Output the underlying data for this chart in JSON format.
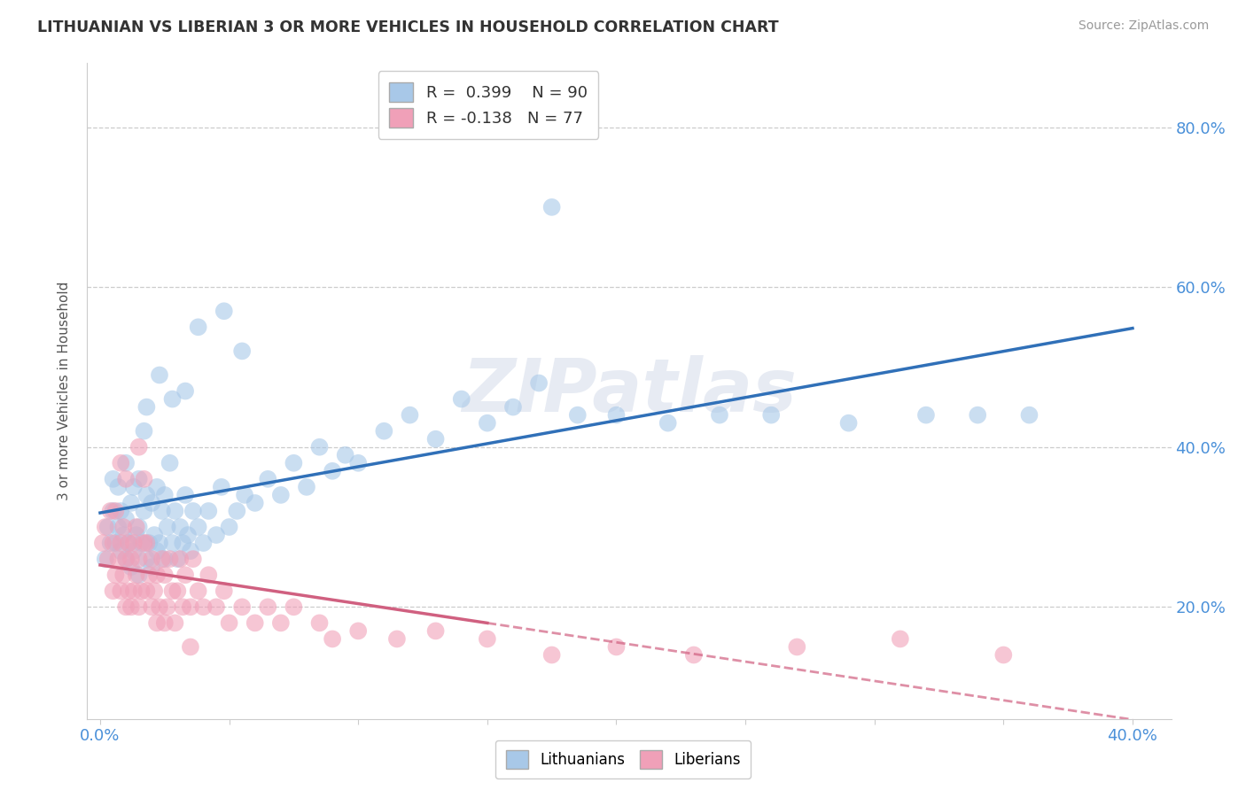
{
  "title": "LITHUANIAN VS LIBERIAN 3 OR MORE VEHICLES IN HOUSEHOLD CORRELATION CHART",
  "source": "Source: ZipAtlas.com",
  "ylabel": "3 or more Vehicles in Household",
  "xlim": [
    -0.005,
    0.415
  ],
  "ylim": [
    0.06,
    0.88
  ],
  "xtick_positions": [
    0.0,
    0.05,
    0.1,
    0.15,
    0.2,
    0.25,
    0.3,
    0.35,
    0.4
  ],
  "xticklabels": [
    "0.0%",
    "",
    "",
    "",
    "",
    "",
    "",
    "",
    "40.0%"
  ],
  "ytick_positions": [
    0.2,
    0.4,
    0.6,
    0.8
  ],
  "yticklabels": [
    "20.0%",
    "40.0%",
    "60.0%",
    "80.0%"
  ],
  "grid_lines": [
    0.2,
    0.4,
    0.6,
    0.8
  ],
  "blue_R": 0.399,
  "blue_N": 90,
  "pink_R": -0.138,
  "pink_N": 77,
  "blue_color": "#a8c8e8",
  "pink_color": "#f0a0b8",
  "blue_line_color": "#3070b8",
  "pink_line_color": "#d06080",
  "watermark": "ZIPatlas",
  "blue_scatter_x": [
    0.002,
    0.003,
    0.004,
    0.005,
    0.005,
    0.006,
    0.007,
    0.007,
    0.008,
    0.008,
    0.009,
    0.01,
    0.01,
    0.01,
    0.011,
    0.012,
    0.012,
    0.013,
    0.013,
    0.014,
    0.015,
    0.015,
    0.015,
    0.016,
    0.017,
    0.017,
    0.018,
    0.018,
    0.019,
    0.02,
    0.02,
    0.021,
    0.022,
    0.022,
    0.023,
    0.024,
    0.025,
    0.025,
    0.026,
    0.027,
    0.028,
    0.029,
    0.03,
    0.031,
    0.032,
    0.033,
    0.034,
    0.035,
    0.036,
    0.038,
    0.04,
    0.042,
    0.045,
    0.047,
    0.05,
    0.053,
    0.056,
    0.06,
    0.065,
    0.07,
    0.075,
    0.08,
    0.085,
    0.09,
    0.095,
    0.1,
    0.11,
    0.12,
    0.13,
    0.14,
    0.15,
    0.16,
    0.17,
    0.185,
    0.2,
    0.22,
    0.24,
    0.26,
    0.29,
    0.32,
    0.34,
    0.36,
    0.175,
    0.055,
    0.048,
    0.038,
    0.028,
    0.018,
    0.023,
    0.033
  ],
  "blue_scatter_y": [
    0.26,
    0.3,
    0.28,
    0.32,
    0.36,
    0.28,
    0.3,
    0.35,
    0.27,
    0.32,
    0.29,
    0.26,
    0.31,
    0.38,
    0.28,
    0.25,
    0.33,
    0.27,
    0.35,
    0.29,
    0.24,
    0.3,
    0.36,
    0.28,
    0.32,
    0.42,
    0.26,
    0.34,
    0.28,
    0.25,
    0.33,
    0.29,
    0.27,
    0.35,
    0.28,
    0.32,
    0.26,
    0.34,
    0.3,
    0.38,
    0.28,
    0.32,
    0.26,
    0.3,
    0.28,
    0.34,
    0.29,
    0.27,
    0.32,
    0.3,
    0.28,
    0.32,
    0.29,
    0.35,
    0.3,
    0.32,
    0.34,
    0.33,
    0.36,
    0.34,
    0.38,
    0.35,
    0.4,
    0.37,
    0.39,
    0.38,
    0.42,
    0.44,
    0.41,
    0.46,
    0.43,
    0.45,
    0.48,
    0.44,
    0.44,
    0.43,
    0.44,
    0.44,
    0.43,
    0.44,
    0.44,
    0.44,
    0.7,
    0.52,
    0.57,
    0.55,
    0.46,
    0.45,
    0.49,
    0.47
  ],
  "pink_scatter_x": [
    0.001,
    0.002,
    0.003,
    0.004,
    0.005,
    0.005,
    0.006,
    0.006,
    0.007,
    0.008,
    0.008,
    0.009,
    0.009,
    0.01,
    0.01,
    0.011,
    0.011,
    0.012,
    0.012,
    0.013,
    0.013,
    0.014,
    0.014,
    0.015,
    0.015,
    0.016,
    0.017,
    0.017,
    0.018,
    0.018,
    0.019,
    0.02,
    0.02,
    0.021,
    0.022,
    0.022,
    0.023,
    0.024,
    0.025,
    0.025,
    0.026,
    0.027,
    0.028,
    0.029,
    0.03,
    0.031,
    0.032,
    0.033,
    0.035,
    0.036,
    0.038,
    0.04,
    0.042,
    0.045,
    0.048,
    0.05,
    0.055,
    0.06,
    0.065,
    0.07,
    0.075,
    0.085,
    0.09,
    0.1,
    0.115,
    0.13,
    0.15,
    0.175,
    0.2,
    0.23,
    0.27,
    0.31,
    0.35,
    0.035,
    0.008,
    0.01,
    0.015
  ],
  "pink_scatter_y": [
    0.28,
    0.3,
    0.26,
    0.32,
    0.22,
    0.28,
    0.24,
    0.32,
    0.26,
    0.22,
    0.28,
    0.24,
    0.3,
    0.2,
    0.26,
    0.22,
    0.28,
    0.2,
    0.26,
    0.22,
    0.28,
    0.24,
    0.3,
    0.2,
    0.26,
    0.22,
    0.28,
    0.36,
    0.22,
    0.28,
    0.24,
    0.2,
    0.26,
    0.22,
    0.18,
    0.24,
    0.2,
    0.26,
    0.18,
    0.24,
    0.2,
    0.26,
    0.22,
    0.18,
    0.22,
    0.26,
    0.2,
    0.24,
    0.2,
    0.26,
    0.22,
    0.2,
    0.24,
    0.2,
    0.22,
    0.18,
    0.2,
    0.18,
    0.2,
    0.18,
    0.2,
    0.18,
    0.16,
    0.17,
    0.16,
    0.17,
    0.16,
    0.14,
    0.15,
    0.14,
    0.15,
    0.16,
    0.14,
    0.15,
    0.38,
    0.36,
    0.4
  ]
}
